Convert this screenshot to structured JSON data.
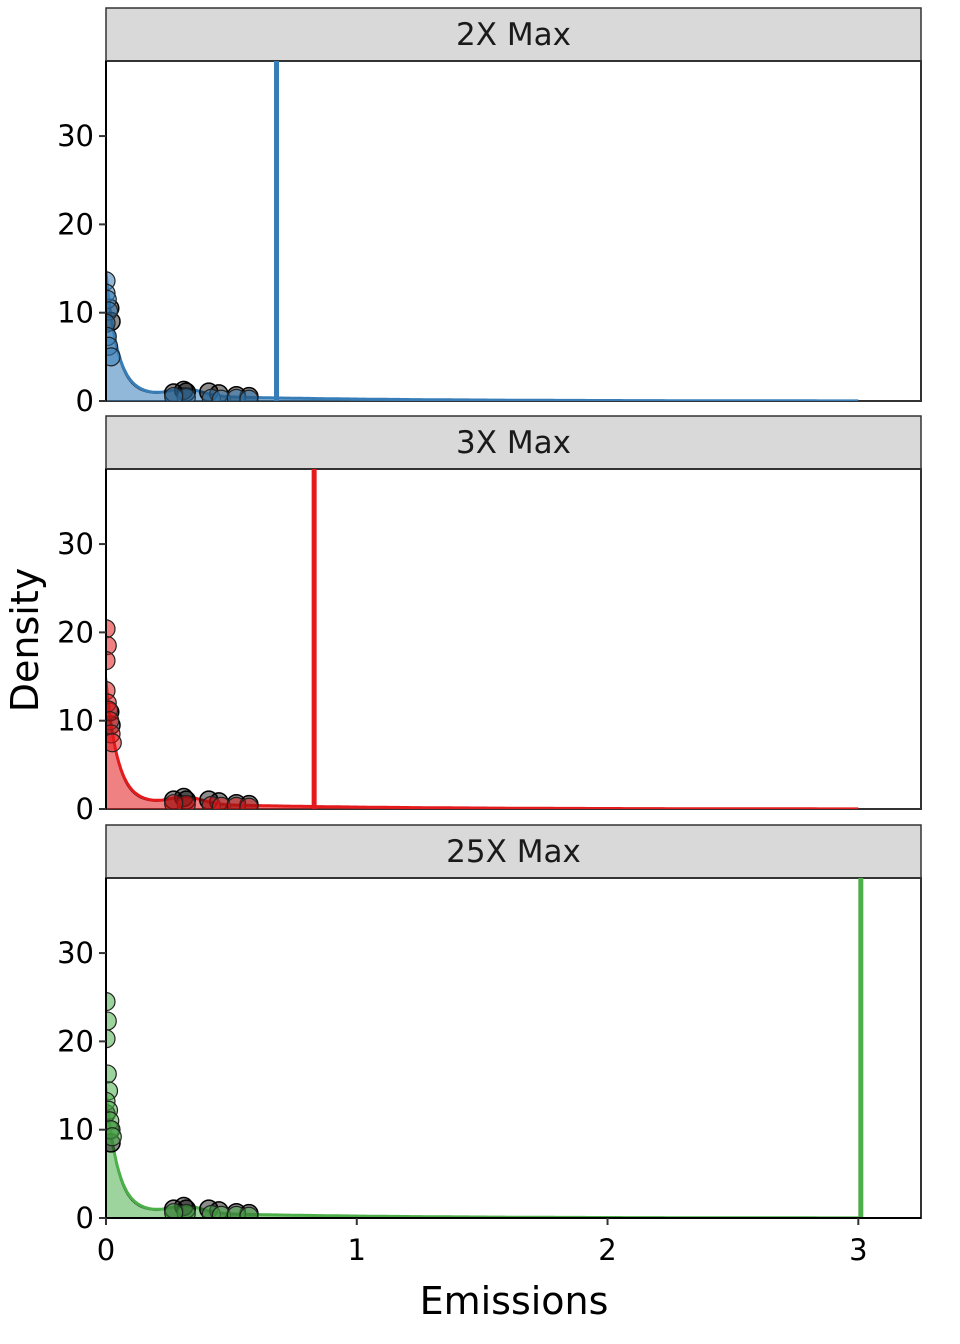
{
  "chart_data": {
    "type": "density",
    "xlabel": "Emissions",
    "ylabel": "Density",
    "xlim": [
      0,
      3.25
    ],
    "ylim": [
      0,
      38.5
    ],
    "x_ticks": [
      0,
      1,
      2,
      3
    ],
    "y_ticks": [
      0,
      10,
      20,
      30
    ],
    "grid": false,
    "density_x_max": 3.0,
    "panels": [
      {
        "label": "2X Max",
        "color": "#377eb8",
        "vline": 0.68,
        "observed_points": [
          {
            "x": 0.27,
            "y": 0.9
          },
          {
            "x": 0.31,
            "y": 1.2
          },
          {
            "x": 0.32,
            "y": 1.0
          },
          {
            "x": 0.41,
            "y": 1.0
          },
          {
            "x": 0.45,
            "y": 0.8
          },
          {
            "x": 0.52,
            "y": 0.6
          },
          {
            "x": 0.57,
            "y": 0.5
          },
          {
            "x": 0.02,
            "y": 9.0
          },
          {
            "x": 0.015,
            "y": 10.5
          }
        ],
        "simulated_points": [
          {
            "x": 0.0,
            "y": 13.6
          },
          {
            "x": 0.0,
            "y": 12.2
          },
          {
            "x": 0.005,
            "y": 11.5
          },
          {
            "x": 0.01,
            "y": 10.2
          },
          {
            "x": 0.0,
            "y": 8.8
          },
          {
            "x": 0.005,
            "y": 7.3
          },
          {
            "x": 0.01,
            "y": 6.2
          },
          {
            "x": 0.02,
            "y": 5.0
          },
          {
            "x": 0.32,
            "y": 0.4
          },
          {
            "x": 0.42,
            "y": 0.3
          },
          {
            "x": 0.46,
            "y": 0.2
          },
          {
            "x": 0.52,
            "y": 0.3
          },
          {
            "x": 0.57,
            "y": 0.2
          },
          {
            "x": 0.27,
            "y": 0.5
          }
        ]
      },
      {
        "label": "3X Max",
        "color": "#e41a1c",
        "vline": 0.83,
        "observed_points": [
          {
            "x": 0.27,
            "y": 1.0
          },
          {
            "x": 0.31,
            "y": 1.3
          },
          {
            "x": 0.32,
            "y": 1.0
          },
          {
            "x": 0.41,
            "y": 1.0
          },
          {
            "x": 0.45,
            "y": 0.8
          },
          {
            "x": 0.52,
            "y": 0.6
          },
          {
            "x": 0.57,
            "y": 0.5
          },
          {
            "x": 0.02,
            "y": 9.5
          },
          {
            "x": 0.015,
            "y": 11.0
          }
        ],
        "simulated_points": [
          {
            "x": 0.0,
            "y": 20.4
          },
          {
            "x": 0.005,
            "y": 18.5
          },
          {
            "x": 0.0,
            "y": 16.8
          },
          {
            "x": 0.0,
            "y": 13.4
          },
          {
            "x": 0.005,
            "y": 12.0
          },
          {
            "x": 0.01,
            "y": 11.2
          },
          {
            "x": 0.015,
            "y": 10.0
          },
          {
            "x": 0.02,
            "y": 8.5
          },
          {
            "x": 0.025,
            "y": 7.5
          },
          {
            "x": 0.32,
            "y": 0.5
          },
          {
            "x": 0.42,
            "y": 0.4
          },
          {
            "x": 0.46,
            "y": 0.3
          },
          {
            "x": 0.52,
            "y": 0.3
          },
          {
            "x": 0.57,
            "y": 0.2
          },
          {
            "x": 0.27,
            "y": 0.6
          }
        ]
      },
      {
        "label": "25X Max",
        "color": "#4daf4a",
        "vline": 3.01,
        "observed_points": [
          {
            "x": 0.27,
            "y": 1.0
          },
          {
            "x": 0.31,
            "y": 1.3
          },
          {
            "x": 0.32,
            "y": 1.0
          },
          {
            "x": 0.41,
            "y": 1.0
          },
          {
            "x": 0.45,
            "y": 0.8
          },
          {
            "x": 0.52,
            "y": 0.6
          },
          {
            "x": 0.57,
            "y": 0.5
          },
          {
            "x": 0.02,
            "y": 8.5
          },
          {
            "x": 0.015,
            "y": 10.0
          },
          {
            "x": 0.0,
            "y": 11.8
          }
        ],
        "simulated_points": [
          {
            "x": 0.0,
            "y": 24.5
          },
          {
            "x": 0.005,
            "y": 22.3
          },
          {
            "x": 0.0,
            "y": 20.3
          },
          {
            "x": 0.005,
            "y": 16.3
          },
          {
            "x": 0.01,
            "y": 14.4
          },
          {
            "x": 0.0,
            "y": 13.2
          },
          {
            "x": 0.01,
            "y": 12.2
          },
          {
            "x": 0.015,
            "y": 11.0
          },
          {
            "x": 0.02,
            "y": 10.0
          },
          {
            "x": 0.025,
            "y": 9.2
          },
          {
            "x": 0.32,
            "y": 0.5
          },
          {
            "x": 0.42,
            "y": 0.4
          },
          {
            "x": 0.46,
            "y": 0.3
          },
          {
            "x": 0.52,
            "y": 0.3
          },
          {
            "x": 0.57,
            "y": 0.2
          },
          {
            "x": 0.27,
            "y": 0.6
          }
        ]
      }
    ]
  }
}
